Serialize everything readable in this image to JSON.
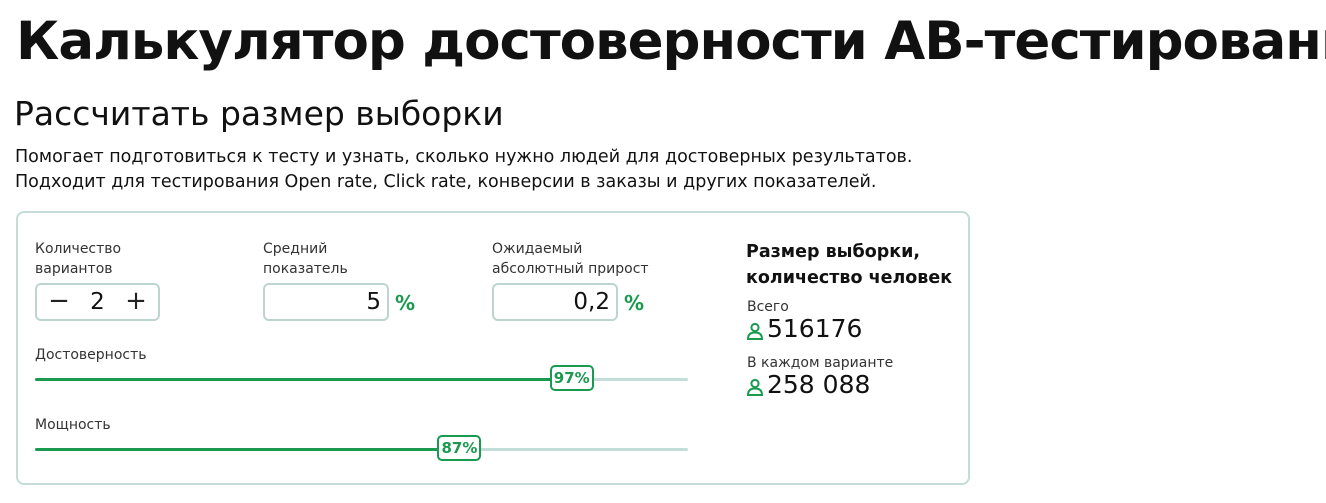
{
  "header": {
    "title": "Калькулятор достоверности AB-тестирования",
    "subtitle": "Рассчитать размер выборки",
    "description_line1": "Помогает подготовиться к тесту и узнать, сколько нужно людей для достоверных результатов.",
    "description_line2": "Подходит для тестирования Open rate, Click rate, конверсии в заказы и других показателей."
  },
  "calculator": {
    "variants": {
      "label_line1": "Количество",
      "label_line2": "вариантов",
      "value": "2",
      "minus": "−",
      "plus": "+"
    },
    "average": {
      "label_line1": "Средний",
      "label_line2": "показатель",
      "value": "5",
      "unit": "%"
    },
    "growth": {
      "label_line1": "Ожидаемый",
      "label_line2": "абсолютный прирост",
      "value": "0,2",
      "unit": "%"
    },
    "confidence": {
      "label": "Достоверность",
      "value_label": "97%",
      "level": 0.825
    },
    "power": {
      "label": "Мощность",
      "value_label": "87%",
      "level": 0.653
    }
  },
  "result": {
    "title_line1": "Размер выборки,",
    "title_line2": "количество человек",
    "total_label": "Всего",
    "total_value": "516176",
    "per_variant_label": "В каждом варианте",
    "per_variant_value": "258 088",
    "icon": "person-icon"
  },
  "colors": {
    "accent": "#1a9a4f",
    "border": "#c3ddd8"
  }
}
